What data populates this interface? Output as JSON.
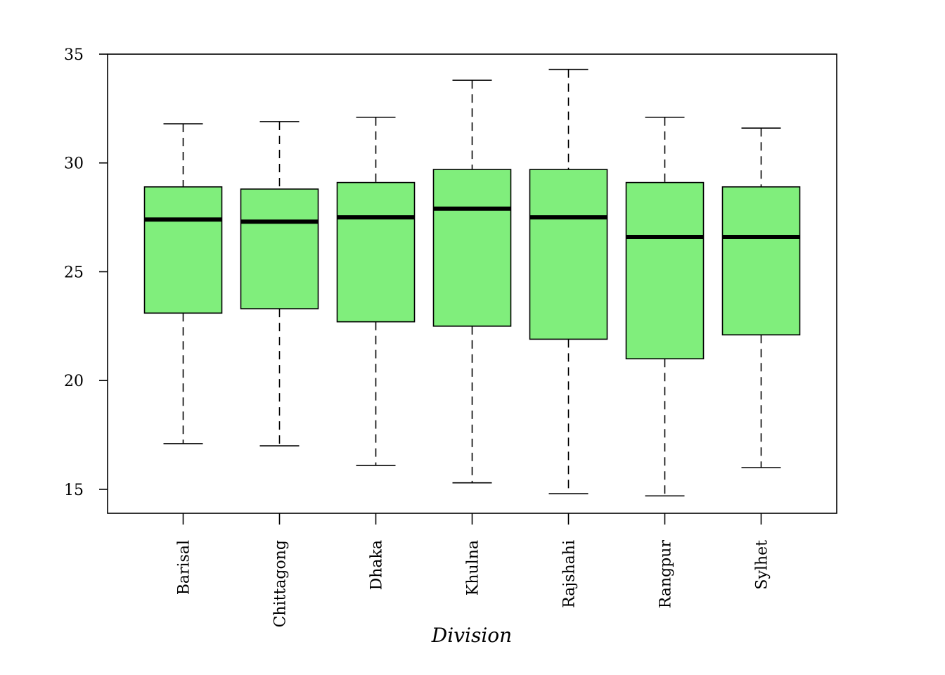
{
  "chart_data": {
    "type": "box",
    "xlabel": "Division",
    "ylabel": "",
    "ylim": [
      13.9,
      35.0
    ],
    "yticks": [
      15,
      20,
      25,
      30,
      35
    ],
    "box_color": "#80ee7c",
    "median_color": "#000000",
    "grid": false,
    "categories": [
      "Barisal",
      "Chittagong",
      "Dhaka",
      "Khulna",
      "Rajshahi",
      "Rangpur",
      "Sylhet"
    ],
    "boxes": [
      {
        "name": "Barisal",
        "min": 17.1,
        "q1": 23.1,
        "median": 27.4,
        "q3": 28.9,
        "max": 31.8
      },
      {
        "name": "Chittagong",
        "min": 17.0,
        "q1": 23.3,
        "median": 27.3,
        "q3": 28.8,
        "max": 31.9
      },
      {
        "name": "Dhaka",
        "min": 16.1,
        "q1": 22.7,
        "median": 27.5,
        "q3": 29.1,
        "max": 32.1
      },
      {
        "name": "Khulna",
        "min": 15.3,
        "q1": 22.5,
        "median": 27.9,
        "q3": 29.7,
        "max": 33.8
      },
      {
        "name": "Rajshahi",
        "min": 14.8,
        "q1": 21.9,
        "median": 27.5,
        "q3": 29.7,
        "max": 34.3
      },
      {
        "name": "Rangpur",
        "min": 14.7,
        "q1": 21.0,
        "median": 26.6,
        "q3": 29.1,
        "max": 32.1
      },
      {
        "name": "Sylhet",
        "min": 16.0,
        "q1": 22.1,
        "median": 26.6,
        "q3": 28.9,
        "max": 31.6
      }
    ]
  }
}
